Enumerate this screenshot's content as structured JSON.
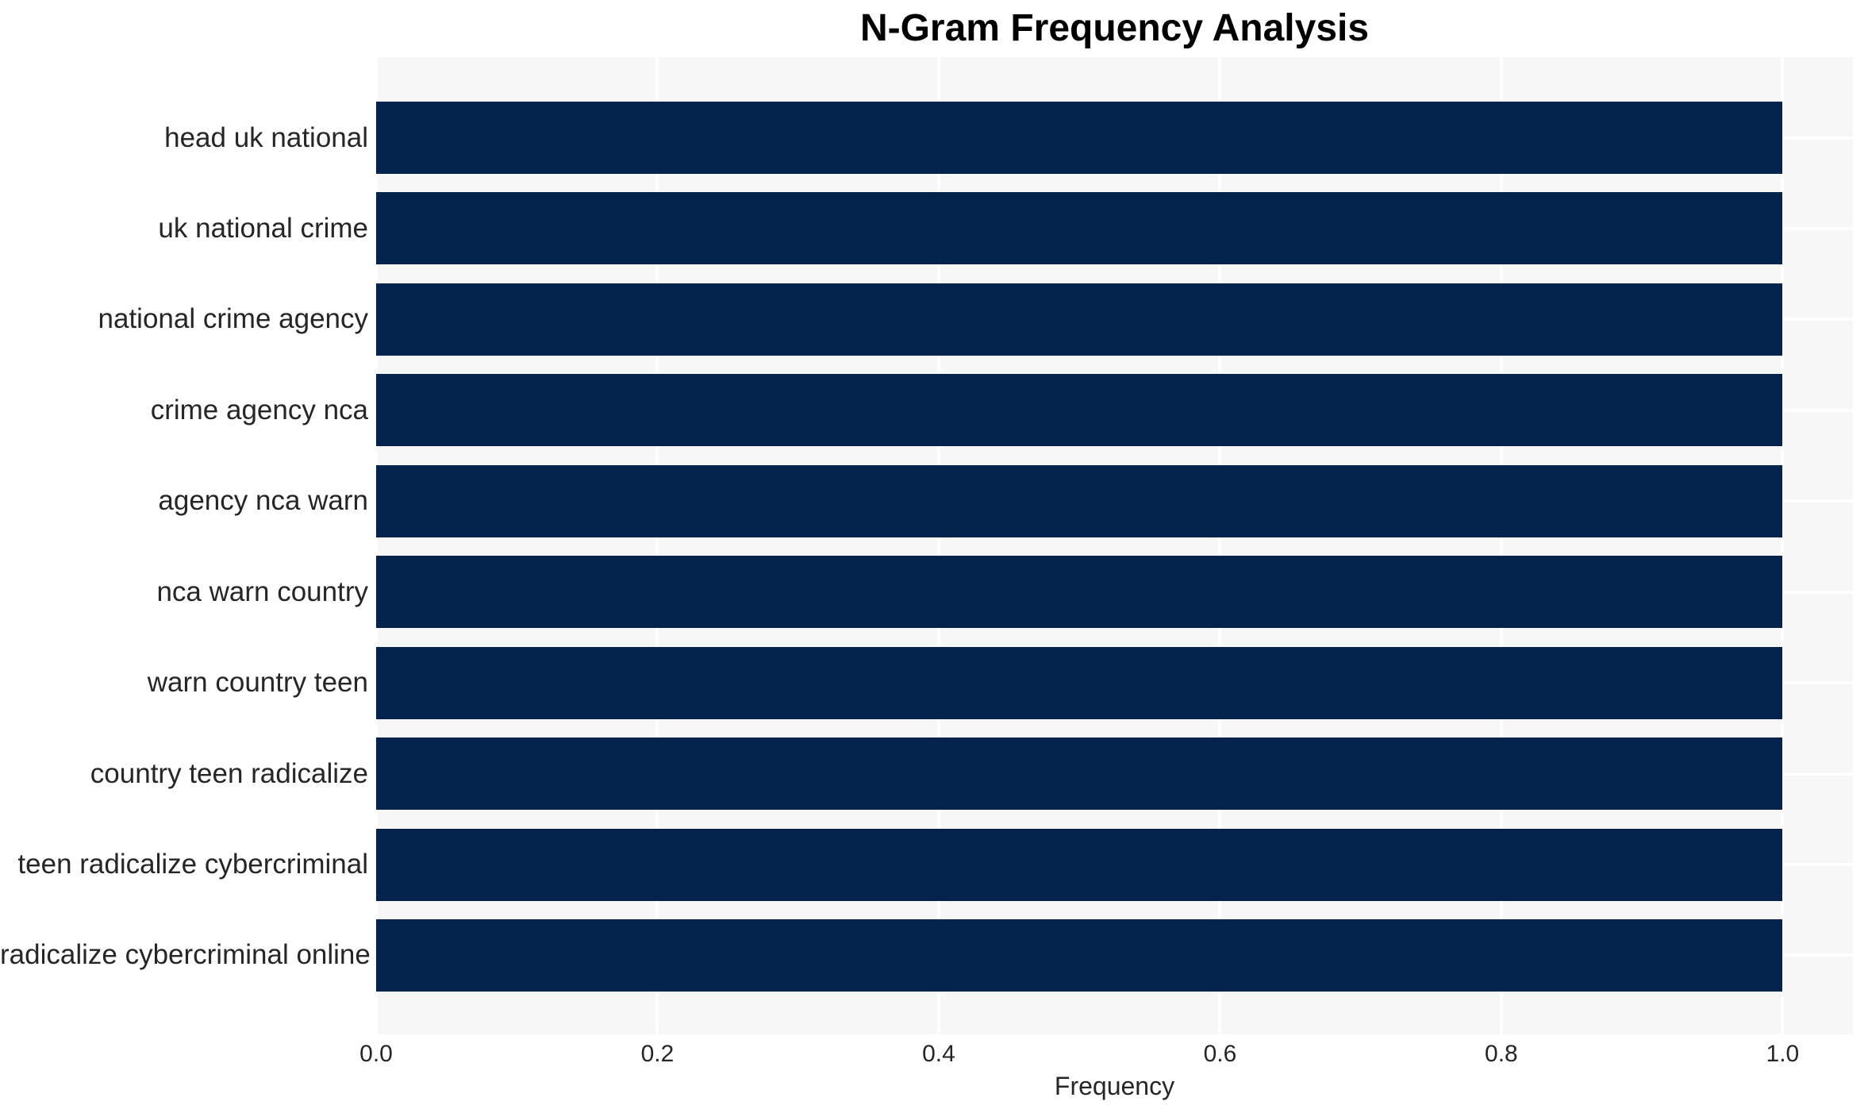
{
  "chart_data": {
    "type": "bar",
    "orientation": "horizontal",
    "title": "N-Gram Frequency Analysis",
    "xlabel": "Frequency",
    "ylabel": "",
    "categories": [
      "head uk national",
      "uk national crime",
      "national crime agency",
      "crime agency nca",
      "agency nca warn",
      "nca warn country",
      "warn country teen",
      "country teen radicalize",
      "teen radicalize cybercriminal",
      "radicalize cybercriminal online"
    ],
    "values": [
      1.0,
      1.0,
      1.0,
      1.0,
      1.0,
      1.0,
      1.0,
      1.0,
      1.0,
      1.0
    ],
    "xlim": [
      0,
      1.05
    ],
    "xticks": [
      0.0,
      0.2,
      0.4,
      0.6,
      0.8,
      1.0
    ],
    "xtick_labels": [
      "0.0",
      "0.2",
      "0.4",
      "0.6",
      "0.8",
      "1.0"
    ],
    "grid": true,
    "legend": false,
    "colors": {
      "bar": "#03234d",
      "plot_background": "#f7f7f7",
      "grid": "#ffffff",
      "text": "#262626",
      "title": "#000000",
      "figure_background": "#ffffff"
    }
  }
}
